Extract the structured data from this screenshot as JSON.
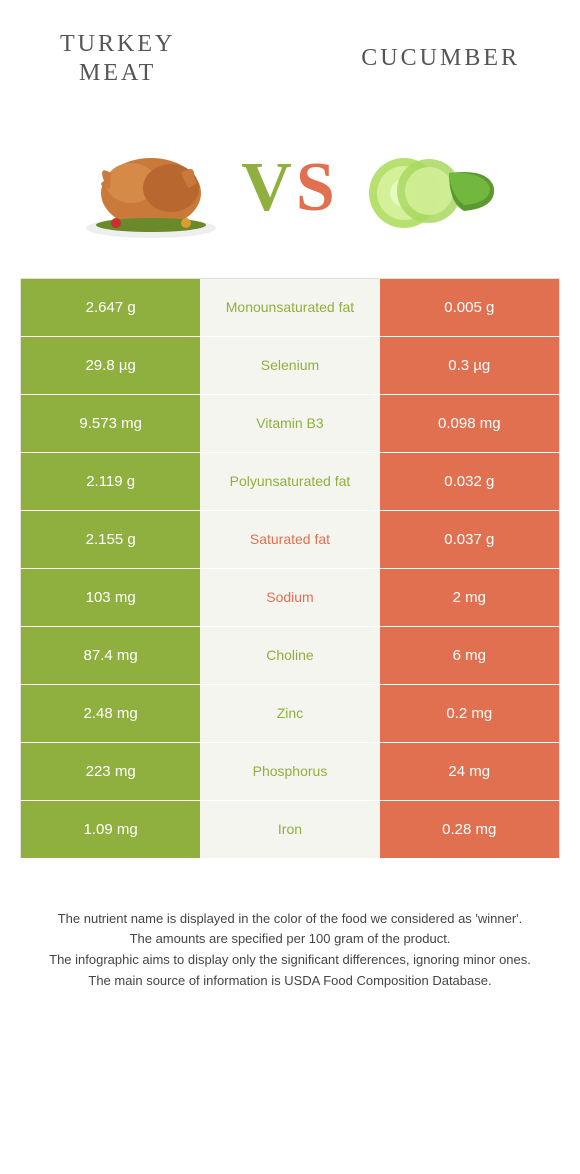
{
  "header": {
    "left_title_line1": "TURKEY",
    "left_title_line2": "MEAT",
    "right_title": "CUCUMBER"
  },
  "vs": {
    "v": "V",
    "s": "S"
  },
  "colors": {
    "green": "#8fb03e",
    "orange": "#e07050",
    "mid_bg": "#f5f5f0",
    "text_dark": "#555555"
  },
  "table": {
    "rows": [
      {
        "left": "2.647 g",
        "label": "Monounsaturated fat",
        "winner": "green",
        "right": "0.005 g"
      },
      {
        "left": "29.8 µg",
        "label": "Selenium",
        "winner": "green",
        "right": "0.3 µg"
      },
      {
        "left": "9.573 mg",
        "label": "Vitamin B3",
        "winner": "green",
        "right": "0.098 mg"
      },
      {
        "left": "2.119 g",
        "label": "Polyunsaturated fat",
        "winner": "green",
        "right": "0.032 g"
      },
      {
        "left": "2.155 g",
        "label": "Saturated fat",
        "winner": "orange",
        "right": "0.037 g"
      },
      {
        "left": "103 mg",
        "label": "Sodium",
        "winner": "orange",
        "right": "2 mg"
      },
      {
        "left": "87.4 mg",
        "label": "Choline",
        "winner": "green",
        "right": "6 mg"
      },
      {
        "left": "2.48 mg",
        "label": "Zinc",
        "winner": "green",
        "right": "0.2 mg"
      },
      {
        "left": "223 mg",
        "label": "Phosphorus",
        "winner": "green",
        "right": "24 mg"
      },
      {
        "left": "1.09 mg",
        "label": "Iron",
        "winner": "green",
        "right": "0.28 mg"
      }
    ]
  },
  "footer": {
    "line1": "The nutrient name is displayed in the color of the food we considered as 'winner'.",
    "line2": "The amounts are specified per 100 gram of the product.",
    "line3": "The infographic aims to display only the significant differences, ignoring minor ones.",
    "line4": "The main source of information is USDA Food Composition Database."
  }
}
